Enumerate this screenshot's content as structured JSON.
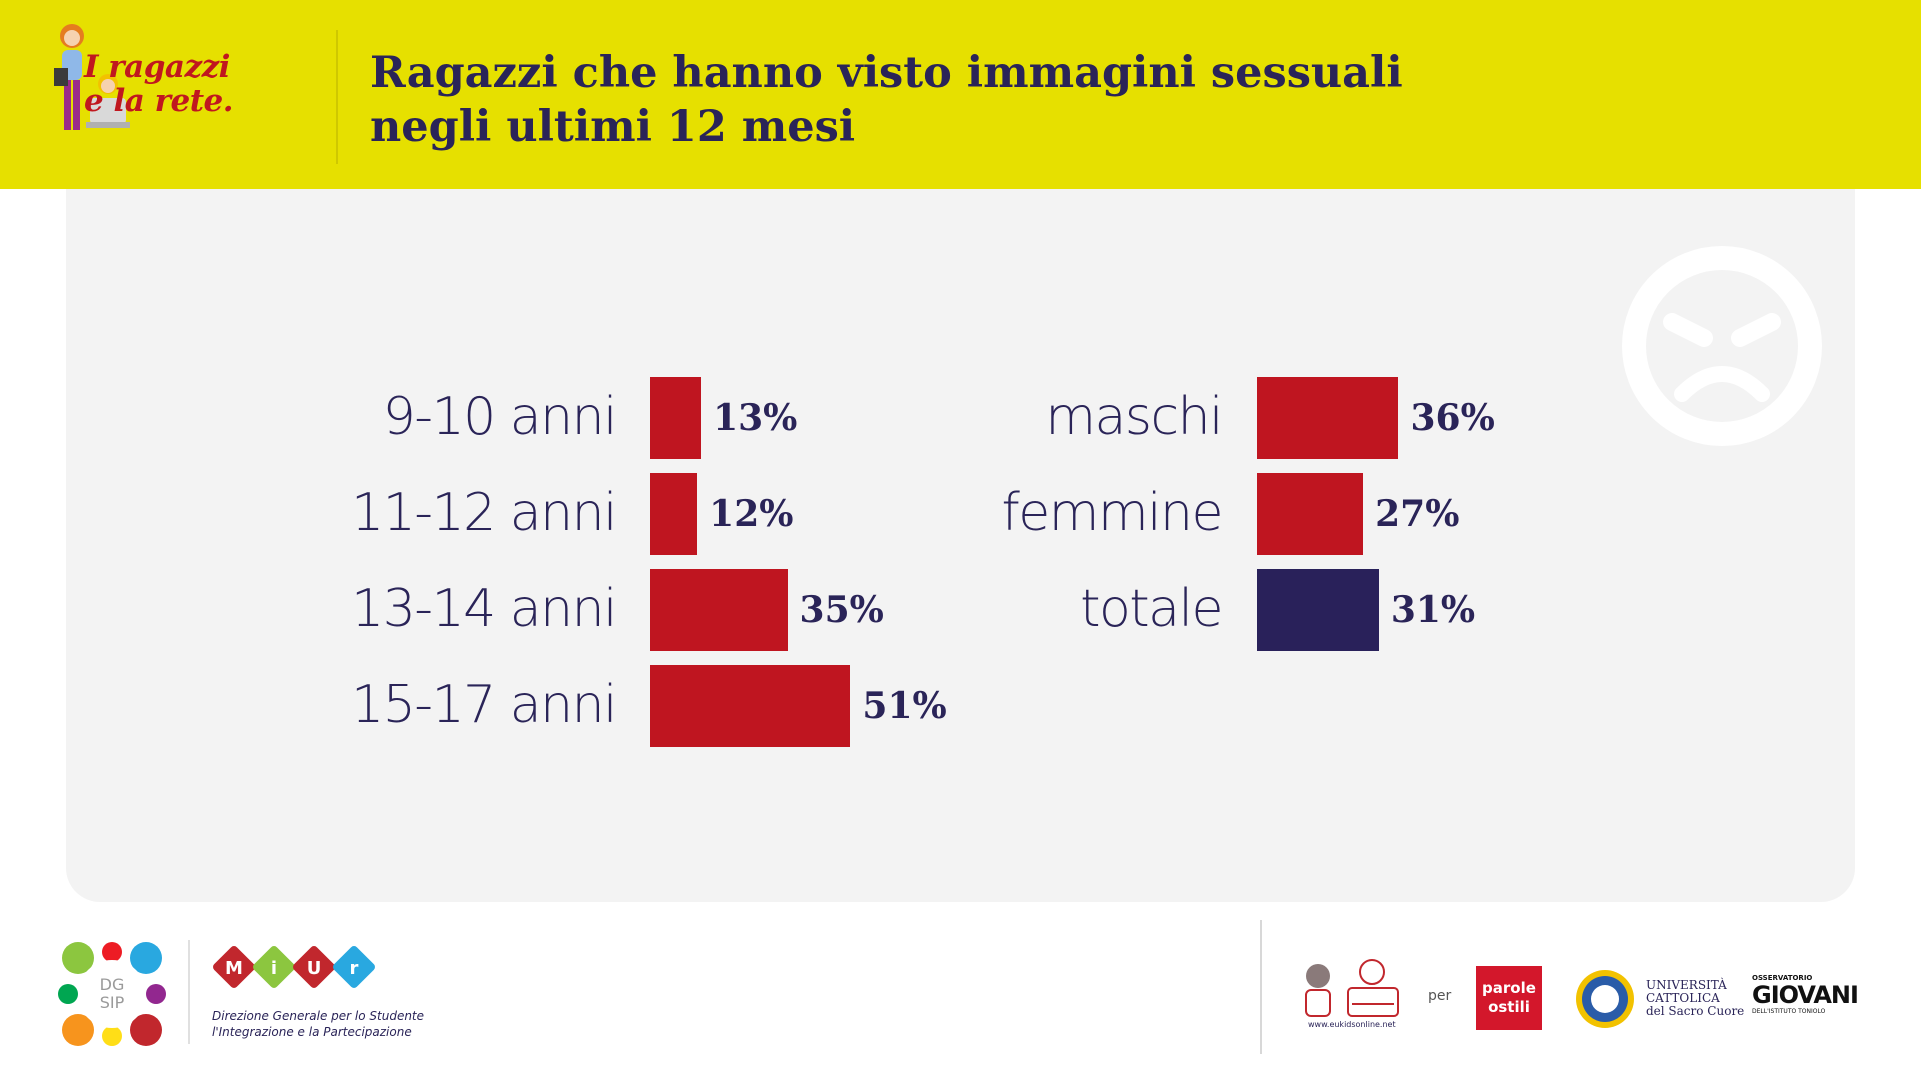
{
  "header": {
    "logo_line1": "I ragazzi",
    "logo_line2": "e la rete.",
    "title_line1": "Ragazzi che hanno visto immagini sessuali",
    "title_line2": "negli ultimi 12 mesi"
  },
  "colors": {
    "header_bg": "#e6e000",
    "bar_red": "#bf1520",
    "bar_navy": "#29215a",
    "text_navy": "#2a2458",
    "panel_bg": "#f3f3f3"
  },
  "chart_data": [
    {
      "type": "bar",
      "orientation": "horizontal",
      "title": "",
      "categories": [
        "9-10 anni",
        "11-12 anni",
        "13-14 anni",
        "15-17 anni"
      ],
      "values": [
        13,
        12,
        35,
        51
      ],
      "value_labels": [
        "13%",
        "12%",
        "35%",
        "51%"
      ],
      "unit": "%",
      "xlim": [
        0,
        100
      ],
      "colors": [
        "#bf1520",
        "#bf1520",
        "#bf1520",
        "#bf1520"
      ]
    },
    {
      "type": "bar",
      "orientation": "horizontal",
      "title": "",
      "categories": [
        "maschi",
        "femmine",
        "totale"
      ],
      "values": [
        36,
        27,
        31
      ],
      "value_labels": [
        "36%",
        "27%",
        "31%"
      ],
      "unit": "%",
      "xlim": [
        0,
        100
      ],
      "colors": [
        "#bf1520",
        "#bf1520",
        "#29215a"
      ]
    }
  ],
  "footer": {
    "dgsip_line1": "DG",
    "dgsip_line2": "SIP",
    "miur_letters": [
      "M",
      "i",
      "U",
      "r"
    ],
    "miur_sub_line1": "Direzione Generale per lo Studente",
    "miur_sub_line2": "l'Integrazione e la Partecipazione",
    "kids_url": "www.eukidsonline.net",
    "per": "per",
    "parole_line1": "parole",
    "parole_line2": "ostili",
    "ucsc_line1": "UNIVERSITÀ",
    "ucsc_line2": "CATTOLICA",
    "ucsc_line3": "del Sacro Cuore",
    "oss_top": "OSSERVATORIO",
    "oss_main": "GIOVANI",
    "oss_bottom": "DELL'ISTITUTO TONIOLO"
  }
}
